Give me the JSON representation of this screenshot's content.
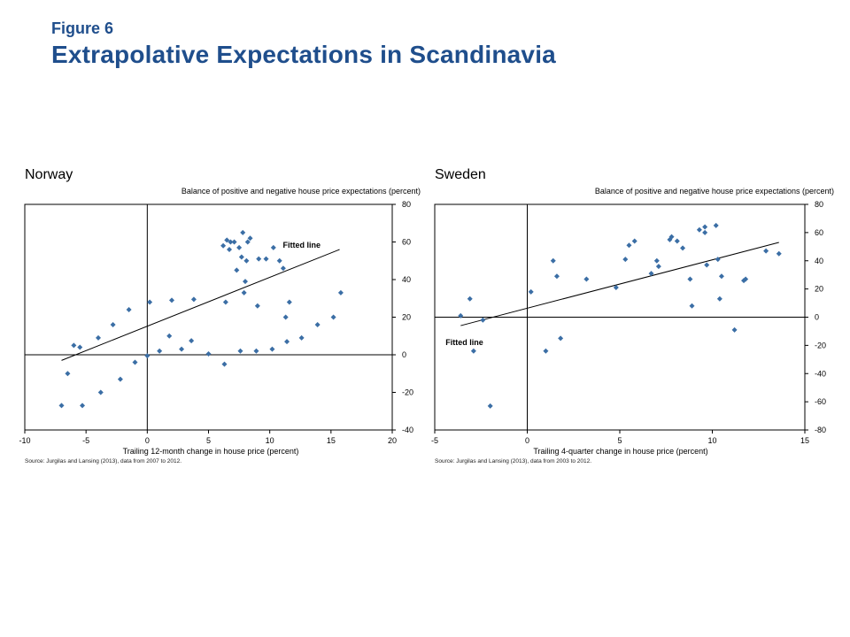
{
  "header": {
    "figure_label": "Figure 6",
    "title": "Extrapolative Expectations in Scandinavia"
  },
  "chart_data": [
    {
      "type": "scatter",
      "title": "Norway",
      "ylabel": "Balance of positive and negative house price expectations (percent)",
      "xlabel": "Trailing 12-month change in house price (percent)",
      "source": "Source: Jurgilas and Lansing (2013), data from 2007 to 2012.",
      "xlim": [
        -10,
        20
      ],
      "ylim": [
        -40,
        80
      ],
      "xticks": [
        -10,
        -5,
        0,
        5,
        10,
        15,
        20
      ],
      "yticks": [
        80,
        60,
        40,
        20,
        0,
        -20,
        -40
      ],
      "fit_label": "Fitted line",
      "fit_line": [
        [
          -7,
          -3
        ],
        [
          15.7,
          56
        ]
      ],
      "marker_color": "#3b6ea5",
      "points": [
        [
          -7,
          -27
        ],
        [
          -6.5,
          -10
        ],
        [
          -6,
          5
        ],
        [
          -5.5,
          4
        ],
        [
          -5.3,
          -27
        ],
        [
          -4,
          9
        ],
        [
          -3.8,
          -20
        ],
        [
          -2.8,
          16
        ],
        [
          -2.2,
          -13
        ],
        [
          -1.5,
          24
        ],
        [
          -1,
          -4
        ],
        [
          0,
          -0.5
        ],
        [
          0.2,
          28
        ],
        [
          1,
          2
        ],
        [
          1.8,
          10
        ],
        [
          2,
          29
        ],
        [
          2.8,
          3
        ],
        [
          3.6,
          7.5
        ],
        [
          3.8,
          29.5
        ],
        [
          5,
          0.5
        ],
        [
          6.3,
          -5
        ],
        [
          6.4,
          28
        ],
        [
          6.2,
          58
        ],
        [
          6.5,
          61
        ],
        [
          6.7,
          56
        ],
        [
          6.8,
          60
        ],
        [
          7.1,
          60
        ],
        [
          7.3,
          45
        ],
        [
          7.5,
          57
        ],
        [
          7.6,
          2
        ],
        [
          7.8,
          65
        ],
        [
          7.7,
          52
        ],
        [
          7.9,
          33
        ],
        [
          8,
          39
        ],
        [
          8.1,
          50
        ],
        [
          8.2,
          60
        ],
        [
          8.4,
          62
        ],
        [
          8.9,
          2
        ],
        [
          9,
          26
        ],
        [
          9.1,
          51
        ],
        [
          9.7,
          51
        ],
        [
          10.2,
          3
        ],
        [
          10.3,
          57
        ],
        [
          10.8,
          50
        ],
        [
          11.1,
          46
        ],
        [
          11.3,
          20
        ],
        [
          11.4,
          7
        ],
        [
          11.6,
          28
        ],
        [
          12.6,
          9
        ],
        [
          13.9,
          16
        ],
        [
          15.2,
          20
        ],
        [
          15.8,
          33
        ]
      ]
    },
    {
      "type": "scatter",
      "title": "Sweden",
      "ylabel": "Balance of positive and negative house price expectations (percent)",
      "xlabel": "Trailing 4-quarter change in house price (percent)",
      "source": "Source: Jurgilas and Lansing (2013), data from 2003 to 2012.",
      "xlim": [
        -5,
        15
      ],
      "ylim": [
        -80,
        80
      ],
      "xticks": [
        -5,
        0,
        5,
        10,
        15
      ],
      "yticks": [
        80,
        60,
        40,
        20,
        0,
        -20,
        -40,
        -60,
        -80
      ],
      "fit_label": "Fitted line",
      "fit_line": [
        [
          -3.6,
          -6
        ],
        [
          13.6,
          53
        ]
      ],
      "marker_color": "#3b6ea5",
      "points": [
        [
          -3.6,
          1
        ],
        [
          -3.1,
          13
        ],
        [
          -2.9,
          -24
        ],
        [
          -2.4,
          -2
        ],
        [
          -2,
          -63
        ],
        [
          0.2,
          18
        ],
        [
          1,
          -24
        ],
        [
          1.4,
          40
        ],
        [
          1.6,
          29
        ],
        [
          1.8,
          -15
        ],
        [
          3.2,
          27
        ],
        [
          4.8,
          21
        ],
        [
          5.3,
          41
        ],
        [
          5.5,
          51
        ],
        [
          5.8,
          54
        ],
        [
          6.7,
          31
        ],
        [
          7,
          40
        ],
        [
          7.1,
          36
        ],
        [
          7.7,
          55
        ],
        [
          7.8,
          57
        ],
        [
          8.1,
          54
        ],
        [
          8.4,
          49
        ],
        [
          8.8,
          27
        ],
        [
          8.9,
          8
        ],
        [
          9.3,
          62
        ],
        [
          9.6,
          64
        ],
        [
          9.6,
          60
        ],
        [
          9.7,
          37
        ],
        [
          10.2,
          65
        ],
        [
          10.3,
          41
        ],
        [
          10.4,
          13
        ],
        [
          10.5,
          29
        ],
        [
          11.2,
          -9
        ],
        [
          11.7,
          26
        ],
        [
          11.8,
          27
        ],
        [
          12.9,
          47
        ],
        [
          13.6,
          45
        ]
      ]
    }
  ]
}
